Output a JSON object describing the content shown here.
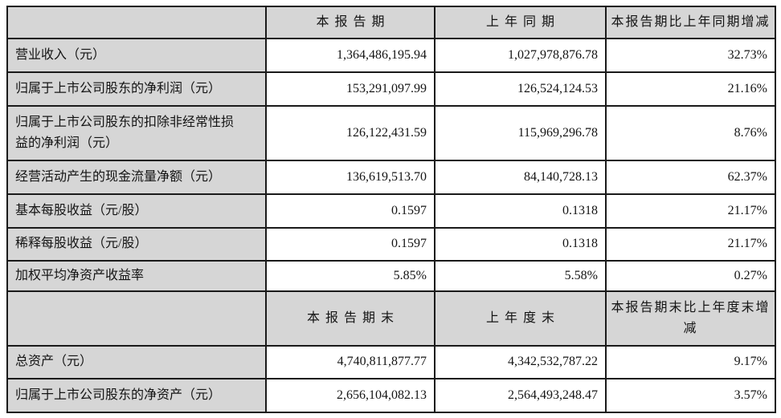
{
  "sections": [
    {
      "header": {
        "label": "",
        "current": "本报告期",
        "prior": "上年同期",
        "change": "本报告期比上年同期增减"
      },
      "rows": [
        {
          "label": "营业收入（元）",
          "current": "1,364,486,195.94",
          "prior": "1,027,978,876.78",
          "change": "32.73%"
        },
        {
          "label": "归属于上市公司股东的净利润（元）",
          "current": "153,291,097.99",
          "prior": "126,524,124.53",
          "change": "21.16%"
        },
        {
          "label": "归属于上市公司股东的扣除非经常性损益的净利润（元）",
          "current": "126,122,431.59",
          "prior": "115,969,296.78",
          "change": "8.76%"
        },
        {
          "label": "经营活动产生的现金流量净额（元）",
          "current": "136,619,513.70",
          "prior": "84,140,728.13",
          "change": "62.37%"
        },
        {
          "label": "基本每股收益（元/股）",
          "current": "0.1597",
          "prior": "0.1318",
          "change": "21.17%"
        },
        {
          "label": "稀释每股收益（元/股）",
          "current": "0.1597",
          "prior": "0.1318",
          "change": "21.17%"
        },
        {
          "label": "加权平均净资产收益率",
          "current": "5.85%",
          "prior": "5.58%",
          "change": "0.27%"
        }
      ]
    },
    {
      "header": {
        "label": "",
        "current": "本报告期末",
        "prior": "上年度末",
        "change": "本报告期末比上年度末增减"
      },
      "rows": [
        {
          "label": "总资产（元）",
          "current": "4,740,811,877.77",
          "prior": "4,342,532,787.22",
          "change": "9.17%"
        },
        {
          "label": "归属于上市公司股东的净资产（元）",
          "current": "2,656,104,082.13",
          "prior": "2,564,493,248.47",
          "change": "3.57%"
        }
      ]
    }
  ]
}
